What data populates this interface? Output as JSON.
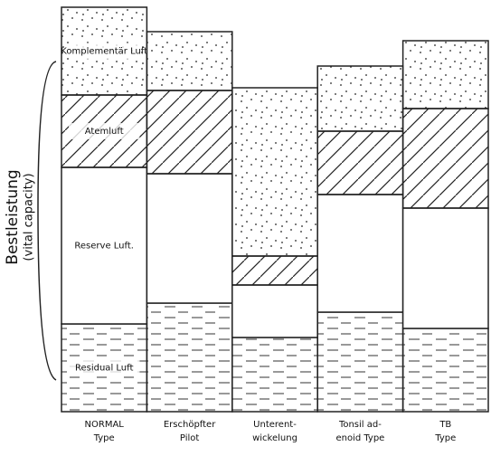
{
  "chart_data": {
    "type": "stacked-bar",
    "y_label": [
      "Bestleistung",
      "(vital capacity)"
    ],
    "categories": [
      [
        "NORMAL",
        "Type"
      ],
      [
        "Erschöpfter",
        "Pilot"
      ],
      [
        "Unterent-",
        "wickelung"
      ],
      [
        "Tonsil ad-",
        "enoid Type"
      ],
      [
        "TB",
        "Type"
      ]
    ],
    "series": [
      {
        "name": "Residual Luft",
        "fill": "dashes",
        "color": "#222",
        "values": [
          97,
          120,
          82,
          110,
          92
        ]
      },
      {
        "name": "Reserve Luft.",
        "fill": "blank",
        "color": "#222",
        "values": [
          173,
          143,
          58,
          130,
          133
        ]
      },
      {
        "name": "Atemluft",
        "fill": "hatch",
        "color": "#222",
        "values": [
          80,
          92,
          32,
          70,
          110
        ]
      },
      {
        "name": "Komplementär Luft",
        "fill": "dots",
        "color": "#222",
        "values": [
          97,
          65,
          186,
          72,
          75
        ]
      }
    ],
    "ylim": [
      0,
      450
    ]
  }
}
